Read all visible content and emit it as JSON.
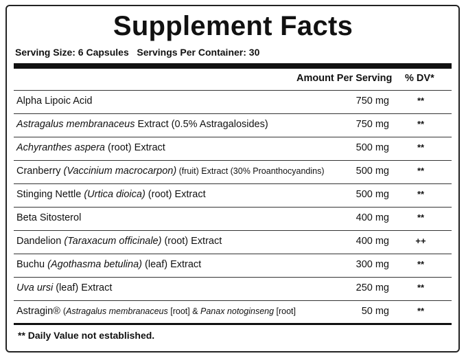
{
  "header": {
    "title": "Supplement Facts",
    "serving_size": "Serving Size: 6 Capsules",
    "servings_per_container": "Servings Per Container: 30"
  },
  "table": {
    "columns": [
      "Amount Per Serving",
      "% DV*"
    ],
    "rows": [
      {
        "name": [
          {
            "text": "Alpha Lipoic Acid"
          }
        ],
        "amount": "750 mg",
        "dv": "**"
      },
      {
        "name": [
          {
            "text": "Astragalus membranaceus",
            "style": "italic"
          },
          {
            "text": " Extract (0.5% Astragalosides)"
          }
        ],
        "amount": "750 mg",
        "dv": "**"
      },
      {
        "name": [
          {
            "text": "Achyranthes aspera",
            "style": "italic"
          },
          {
            "text": " (root) Extract"
          }
        ],
        "amount": "500 mg",
        "dv": "**"
      },
      {
        "name": [
          {
            "text": "Cranberry "
          },
          {
            "text": "(Vaccinium macrocarpon)",
            "style": "italic"
          },
          {
            "text": " (fruit) Extract (30% Proanthocyandins)",
            "style": "small"
          }
        ],
        "amount": "500 mg",
        "dv": "**"
      },
      {
        "name": [
          {
            "text": "Stinging Nettle "
          },
          {
            "text": "(Urtica dioica)",
            "style": "italic"
          },
          {
            "text": " (root) Extract"
          }
        ],
        "amount": "500 mg",
        "dv": "**"
      },
      {
        "name": [
          {
            "text": "Beta Sitosterol"
          }
        ],
        "amount": "400 mg",
        "dv": "**"
      },
      {
        "name": [
          {
            "text": "Dandelion "
          },
          {
            "text": "(Taraxacum officinale)",
            "style": "italic"
          },
          {
            "text": " (root) Extract"
          }
        ],
        "amount": "400 mg",
        "dv": "++"
      },
      {
        "name": [
          {
            "text": "Buchu "
          },
          {
            "text": "(Agothasma betulina)",
            "style": "italic"
          },
          {
            "text": " (leaf) Extract"
          }
        ],
        "amount": "300 mg",
        "dv": "**"
      },
      {
        "name": [
          {
            "text": "Uva ursi",
            "style": "italic"
          },
          {
            "text": " (leaf) Extract"
          }
        ],
        "amount": "250 mg",
        "dv": "**"
      },
      {
        "name": [
          {
            "text": "Astragin® "
          },
          {
            "text": "(",
            "style": "small"
          },
          {
            "text": "Astragalus membranaceus",
            "style": "small-italic"
          },
          {
            "text": " [root] & ",
            "style": "small"
          },
          {
            "text": "Panax notoginseng",
            "style": "small-italic"
          },
          {
            "text": " [root]",
            "style": "small"
          }
        ],
        "amount": "50 mg",
        "dv": "**"
      }
    ]
  },
  "footnote": "** Daily Value not established."
}
